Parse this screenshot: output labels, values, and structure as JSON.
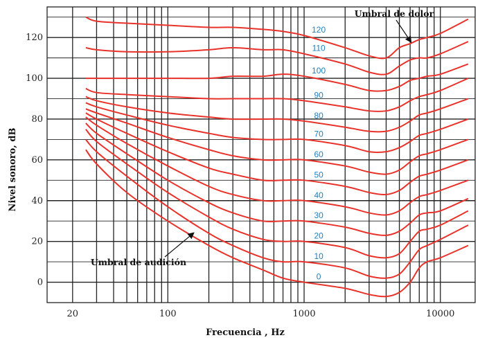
{
  "chart_data": {
    "type": "line",
    "title": "",
    "xlabel": "Frecuencia , Hz",
    "ylabel": "Nivel sonoro, dB",
    "x_scale": "log",
    "xlim": [
      13,
      18000
    ],
    "ylim": [
      -10,
      135
    ],
    "x_ticks": [
      {
        "value": 20,
        "label": "20"
      },
      {
        "value": 100,
        "label": "100"
      },
      {
        "value": 1000,
        "label": "1000"
      },
      {
        "value": 10000,
        "label": "10000"
      }
    ],
    "y_ticks": [
      {
        "value": 0,
        "label": "0"
      },
      {
        "value": 20,
        "label": "20"
      },
      {
        "value": 40,
        "label": "40"
      },
      {
        "value": 60,
        "label": "60"
      },
      {
        "value": 80,
        "label": "80"
      },
      {
        "value": 100,
        "label": "100"
      },
      {
        "value": 120,
        "label": "120"
      }
    ],
    "grid": true,
    "colors": {
      "curves": "#e8322a",
      "labels": "#1f7fc0",
      "grid": "#222222"
    },
    "x": [
      25,
      30,
      50,
      100,
      200,
      300,
      500,
      700,
      1000,
      2000,
      3000,
      4000,
      5000,
      6000,
      7000,
      8000,
      10000,
      16000
    ],
    "series": [
      {
        "level_label": "0",
        "values": [
          65,
          58,
          44,
          30,
          18,
          12,
          6,
          2,
          0,
          -3,
          -6,
          -7,
          -5,
          0,
          7,
          10,
          12,
          18
        ]
      },
      {
        "level_label": "10",
        "values": [
          70,
          64,
          52,
          37,
          24,
          18,
          12,
          10,
          10,
          7,
          3,
          2,
          4,
          10,
          16,
          18,
          21,
          28
        ]
      },
      {
        "level_label": "20",
        "values": [
          75,
          69,
          58,
          44,
          32,
          26,
          21,
          20,
          20,
          17,
          13,
          12,
          14,
          20,
          25,
          26,
          28,
          35
        ]
      },
      {
        "level_label": "30",
        "values": [
          78,
          73,
          63,
          50,
          39,
          34,
          30,
          30,
          30,
          27,
          24,
          23,
          25,
          29,
          33,
          34,
          35,
          41
        ]
      },
      {
        "level_label": "40",
        "values": [
          81,
          77,
          68,
          57,
          47,
          43,
          40,
          40,
          40,
          37,
          34,
          33,
          35,
          39,
          42,
          43,
          45,
          50
        ]
      },
      {
        "level_label": "50",
        "values": [
          83,
          80,
          73,
          64,
          56,
          53,
          50,
          50,
          50,
          47,
          44,
          43,
          45,
          49,
          52,
          53,
          55,
          60
        ]
      },
      {
        "level_label": "60",
        "values": [
          85,
          83,
          78,
          71,
          65,
          62,
          60,
          60,
          60,
          57,
          54,
          53,
          55,
          59,
          62,
          63,
          65,
          70
        ]
      },
      {
        "level_label": "70",
        "values": [
          88,
          86,
          82,
          77,
          73,
          71,
          70,
          70,
          70,
          67,
          64,
          64,
          66,
          69,
          72,
          73,
          75,
          80
        ]
      },
      {
        "level_label": "80",
        "values": [
          91,
          89,
          86,
          83,
          81,
          80,
          80,
          80,
          79,
          76,
          74,
          74,
          76,
          79,
          82,
          83,
          85,
          90
        ]
      },
      {
        "level_label": "90",
        "values": [
          95,
          93,
          92,
          91,
          90,
          90,
          90,
          90,
          89,
          86,
          84,
          84,
          86,
          89,
          91,
          92,
          94,
          100
        ]
      },
      {
        "level_label": "100",
        "values": [
          100,
          100,
          100,
          100,
          100,
          101,
          101,
          102,
          101,
          97,
          94,
          94,
          96,
          99,
          100,
          101,
          102,
          107
        ]
      },
      {
        "level_label": "110",
        "values": [
          115,
          114,
          113,
          113,
          114,
          115,
          114,
          114,
          112,
          107,
          103,
          102,
          106,
          109,
          110,
          110,
          112,
          118
        ]
      },
      {
        "level_label": "120",
        "values": [
          130,
          128,
          127,
          126,
          125,
          125,
          124,
          123,
          121,
          115,
          111,
          110,
          115,
          117,
          119,
          120,
          122,
          129
        ]
      }
    ],
    "annotations": [
      {
        "text": "Umbral de dolor",
        "target_x": 6200,
        "target_y": 117
      },
      {
        "text": "Umbral de audición",
        "target_x": 150,
        "target_y": 25
      }
    ]
  }
}
